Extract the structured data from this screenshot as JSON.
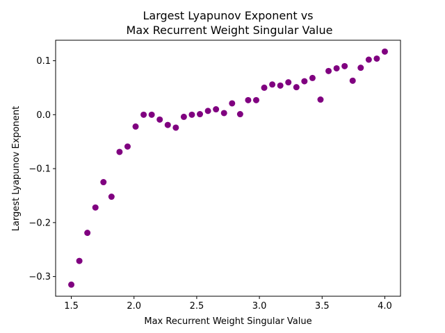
{
  "chart_data": {
    "type": "scatter",
    "title_lines": [
      "Largest Lyapunov Exponent vs",
      "Max Recurrent Weight Singular Value"
    ],
    "xlabel": "Max Recurrent Weight Singular Value",
    "ylabel": "Largest Lyapunov Exponent",
    "xlim": [
      1.375,
      4.125
    ],
    "ylim": [
      -0.3365,
      0.138
    ],
    "xticks": [
      1.5,
      2.0,
      2.5,
      3.0,
      3.5,
      4.0
    ],
    "xtick_labels": [
      "1.5",
      "2.0",
      "2.5",
      "3.0",
      "3.5",
      "4.0"
    ],
    "yticks": [
      -0.3,
      -0.2,
      -0.1,
      0.0,
      0.1
    ],
    "ytick_labels": [
      "−0.3",
      "−0.2",
      "−0.1",
      "0.0",
      "0.1"
    ],
    "grid": false,
    "marker_color": "#800080",
    "series": [
      {
        "x": [
          1.5,
          1.5641,
          1.6282,
          1.6923,
          1.7564,
          1.8205,
          1.8846,
          1.9487,
          2.0128,
          2.0769,
          2.141,
          2.2051,
          2.2692,
          2.3333,
          2.3974,
          2.4615,
          2.5256,
          2.5897,
          2.6538,
          2.7179,
          2.7821,
          2.8462,
          2.9103,
          2.9744,
          3.0385,
          3.1026,
          3.1667,
          3.2308,
          3.2949,
          3.359,
          3.4231,
          3.4872,
          3.5513,
          3.6154,
          3.6795,
          3.7436,
          3.8077,
          3.8718,
          3.9359,
          4.0
        ],
        "y": [
          -0.315,
          -0.271,
          -0.219,
          -0.172,
          -0.125,
          -0.152,
          -0.069,
          -0.059,
          -0.022,
          0.0,
          0.0,
          -0.009,
          -0.019,
          -0.024,
          -0.004,
          0.0,
          0.001,
          0.007,
          0.01,
          0.003,
          0.021,
          0.001,
          0.027,
          0.027,
          0.05,
          0.056,
          0.054,
          0.06,
          0.051,
          0.062,
          0.068,
          0.028,
          0.081,
          0.086,
          0.09,
          0.063,
          0.087,
          0.102,
          0.104,
          0.117
        ]
      }
    ]
  }
}
